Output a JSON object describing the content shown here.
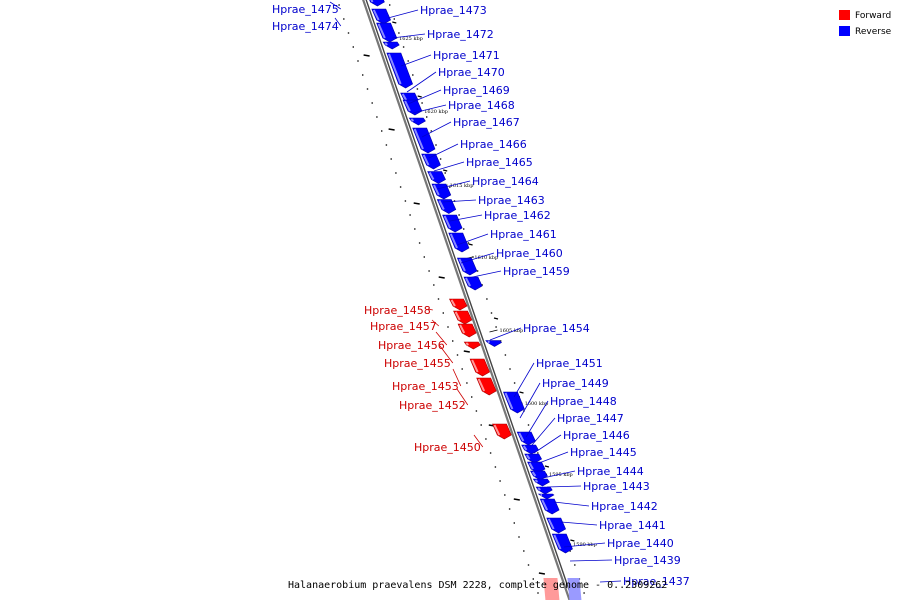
{
  "caption": "Halanaerobium praevalens DSM 2228, complete genome - 0..2309262",
  "legend": [
    {
      "label": "Forward",
      "color": "#ff0000"
    },
    {
      "label": "Reverse",
      "color": "#0000ff"
    }
  ],
  "colors": {
    "forward": "#ff0000",
    "reverse": "#0000ff",
    "forward_label": "#cc0000",
    "reverse_label": "#0000cc",
    "backbone": "#888888"
  },
  "ticks": [
    "1625 kbp",
    "1620 kbp",
    "1615 kbp",
    "1610 kbp",
    "1605 kbp",
    "1600 kbp",
    "1595 kbp",
    "1590 kbp"
  ],
  "genes": [
    {
      "name": "Hprae_1475",
      "strand": "reverse"
    },
    {
      "name": "Hprae_1474",
      "strand": "reverse"
    },
    {
      "name": "Hprae_1473",
      "strand": "reverse"
    },
    {
      "name": "Hprae_1472",
      "strand": "reverse"
    },
    {
      "name": "Hprae_1471",
      "strand": "reverse"
    },
    {
      "name": "Hprae_1470",
      "strand": "reverse"
    },
    {
      "name": "Hprae_1469",
      "strand": "reverse"
    },
    {
      "name": "Hprae_1468",
      "strand": "reverse"
    },
    {
      "name": "Hprae_1467",
      "strand": "reverse"
    },
    {
      "name": "Hprae_1466",
      "strand": "reverse"
    },
    {
      "name": "Hprae_1465",
      "strand": "reverse"
    },
    {
      "name": "Hprae_1464",
      "strand": "reverse"
    },
    {
      "name": "Hprae_1463",
      "strand": "reverse"
    },
    {
      "name": "Hprae_1462",
      "strand": "reverse"
    },
    {
      "name": "Hprae_1461",
      "strand": "reverse"
    },
    {
      "name": "Hprae_1460",
      "strand": "reverse"
    },
    {
      "name": "Hprae_1459",
      "strand": "reverse"
    },
    {
      "name": "Hprae_1458",
      "strand": "forward"
    },
    {
      "name": "Hprae_1457",
      "strand": "forward"
    },
    {
      "name": "Hprae_1456",
      "strand": "forward"
    },
    {
      "name": "Hprae_1455",
      "strand": "forward"
    },
    {
      "name": "Hprae_1454",
      "strand": "reverse"
    },
    {
      "name": "Hprae_1453",
      "strand": "forward"
    },
    {
      "name": "Hprae_1452",
      "strand": "forward"
    },
    {
      "name": "Hprae_1451",
      "strand": "reverse"
    },
    {
      "name": "Hprae_1450",
      "strand": "forward"
    },
    {
      "name": "Hprae_1449",
      "strand": "reverse"
    },
    {
      "name": "Hprae_1448",
      "strand": "reverse"
    },
    {
      "name": "Hprae_1447",
      "strand": "reverse"
    },
    {
      "name": "Hprae_1446",
      "strand": "reverse"
    },
    {
      "name": "Hprae_1445",
      "strand": "reverse"
    },
    {
      "name": "Hprae_1444",
      "strand": "reverse"
    },
    {
      "name": "Hprae_1443",
      "strand": "reverse"
    },
    {
      "name": "Hprae_1442",
      "strand": "reverse"
    },
    {
      "name": "Hprae_1441",
      "strand": "reverse"
    },
    {
      "name": "Hprae_1440",
      "strand": "reverse"
    },
    {
      "name": "Hprae_1439",
      "strand": "reverse"
    },
    {
      "name": "Hprae_1437",
      "strand": "reverse"
    }
  ]
}
